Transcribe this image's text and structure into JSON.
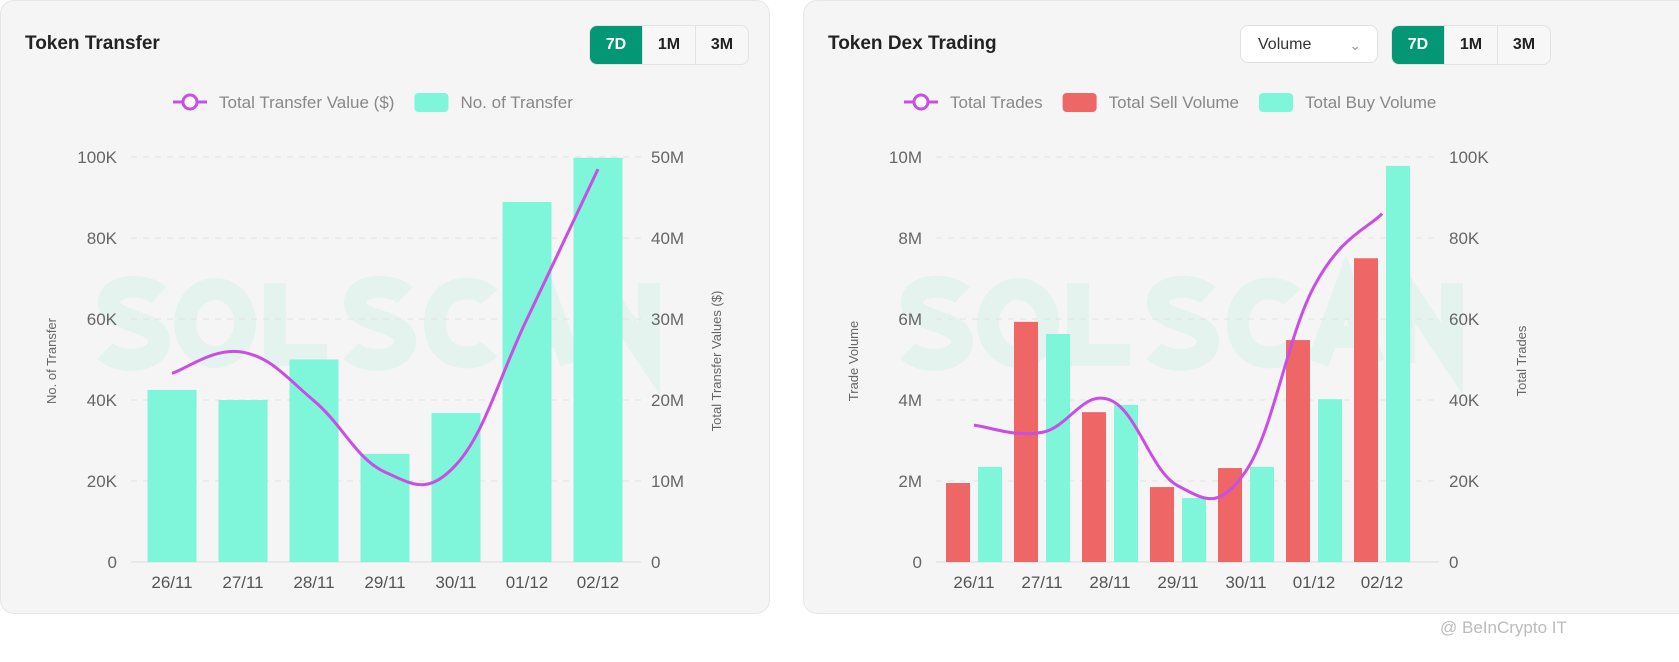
{
  "watermark": "SOLSCAN",
  "source_watermark": "@ BeInCrypto IT",
  "colors": {
    "accent": "#039775",
    "line": "#c94ee3",
    "buy": "#7ff5da",
    "sell": "#ee6666"
  },
  "chart_data": [
    {
      "type": "bar+line",
      "title": "Token Transfer",
      "range_buttons": [
        "7D",
        "1M",
        "3M"
      ],
      "active_range": "7D",
      "categories": [
        "26/11",
        "27/11",
        "28/11",
        "29/11",
        "30/11",
        "01/12",
        "02/12"
      ],
      "legend": [
        "Total Transfer Value ($)",
        "No. of Transfer"
      ],
      "legend_position": "top",
      "ylabel": "No. of Transfer",
      "y2label": "Total Transfer Values ($)",
      "yticks": [
        "0",
        "20K",
        "40K",
        "60K",
        "80K",
        "100K"
      ],
      "y2ticks": [
        "0",
        "10M",
        "20M",
        "30M",
        "40M",
        "50M"
      ],
      "ylim": [
        0,
        100000
      ],
      "y2lim": [
        0,
        50000000
      ],
      "grid": true,
      "series": [
        {
          "name": "No. of Transfer",
          "type": "bar",
          "axis": "left",
          "color": "#7ff5da",
          "values": [
            42500,
            40000,
            50000,
            26700,
            36800,
            88900,
            99800
          ]
        },
        {
          "name": "Total Transfer Value ($)",
          "type": "line",
          "axis": "right",
          "color": "#c94ee3",
          "values": [
            23300000,
            25900000,
            19900000,
            11100000,
            12000000,
            30000000,
            48500000
          ]
        }
      ]
    },
    {
      "type": "bar+line",
      "title": "Token Dex Trading",
      "select_value": "Volume",
      "range_buttons": [
        "7D",
        "1M",
        "3M"
      ],
      "active_range": "7D",
      "categories": [
        "26/11",
        "27/11",
        "28/11",
        "29/11",
        "30/11",
        "01/12",
        "02/12"
      ],
      "legend": [
        "Total Trades",
        "Total Sell Volume",
        "Total Buy Volume"
      ],
      "legend_position": "top",
      "ylabel": "Trade Volume",
      "y2label": "Total Trades",
      "yticks": [
        "0",
        "2M",
        "4M",
        "6M",
        "8M",
        "10M"
      ],
      "y2ticks": [
        "0",
        "20K",
        "40K",
        "60K",
        "80K",
        "100K"
      ],
      "ylim": [
        0,
        10000000
      ],
      "y2lim": [
        0,
        100000
      ],
      "grid": true,
      "series": [
        {
          "name": "Total Sell Volume",
          "type": "bar",
          "axis": "left",
          "color": "#ee6666",
          "values": [
            1950000,
            5930000,
            3700000,
            1850000,
            2320000,
            5480000,
            7500000
          ]
        },
        {
          "name": "Total Buy Volume",
          "type": "bar",
          "axis": "left",
          "color": "#7ff5da",
          "values": [
            2350000,
            5630000,
            3880000,
            1580000,
            2350000,
            4020000,
            9780000
          ]
        },
        {
          "name": "Total Trades",
          "type": "line",
          "axis": "right",
          "color": "#c94ee3",
          "values": [
            33800,
            32000,
            40000,
            18800,
            22500,
            68000,
            86000
          ]
        }
      ]
    }
  ]
}
